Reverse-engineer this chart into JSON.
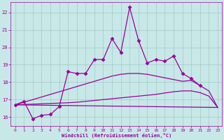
{
  "xlabel": "Windchill (Refroidissement éolien,°C)",
  "xlim": [
    -0.5,
    23.5
  ],
  "ylim": [
    15.5,
    22.6
  ],
  "xticks": [
    0,
    1,
    2,
    3,
    4,
    5,
    6,
    7,
    8,
    9,
    10,
    11,
    12,
    13,
    14,
    15,
    16,
    17,
    18,
    19,
    20,
    21,
    22,
    23
  ],
  "yticks": [
    16,
    17,
    18,
    19,
    20,
    21,
    22
  ],
  "bg_color": "#c8e8e8",
  "line_color": "#990099",
  "grid_color": "#a0c8c8",
  "series": [
    {
      "x": [
        0,
        1,
        2,
        3,
        4,
        5,
        6,
        7,
        8,
        9,
        10,
        11,
        12,
        13,
        14,
        15,
        16,
        17,
        18,
        19,
        20,
        21,
        22,
        23
      ],
      "y": [
        16.7,
        16.9,
        15.9,
        16.1,
        16.15,
        16.6,
        18.6,
        18.5,
        18.5,
        19.3,
        19.3,
        20.5,
        19.7,
        22.3,
        20.4,
        19.1,
        19.3,
        19.2,
        19.5,
        18.5,
        18.2,
        17.8,
        null,
        null
      ],
      "marker": "D",
      "marker_size": 2.5,
      "lw": 0.9
    },
    {
      "x": [
        0,
        23
      ],
      "y": [
        16.7,
        16.55
      ],
      "marker": null,
      "marker_size": 0,
      "lw": 0.9
    },
    {
      "x": [
        0,
        1,
        2,
        3,
        4,
        5,
        6,
        7,
        8,
        9,
        10,
        11,
        12,
        13,
        14,
        15,
        16,
        17,
        18,
        19,
        20,
        21,
        22,
        23
      ],
      "y": [
        16.7,
        16.85,
        17.0,
        17.15,
        17.3,
        17.45,
        17.6,
        17.75,
        17.9,
        18.05,
        18.2,
        18.35,
        18.45,
        18.5,
        18.5,
        18.45,
        18.35,
        18.25,
        18.15,
        18.05,
        18.1,
        17.8,
        17.5,
        16.55
      ],
      "marker": null,
      "marker_size": 0,
      "lw": 0.9
    },
    {
      "x": [
        0,
        1,
        2,
        3,
        4,
        5,
        6,
        7,
        8,
        9,
        10,
        11,
        12,
        13,
        14,
        15,
        16,
        17,
        18,
        19,
        20,
        21,
        22,
        23
      ],
      "y": [
        16.7,
        16.72,
        16.74,
        16.76,
        16.78,
        16.8,
        16.82,
        16.85,
        16.9,
        16.95,
        17.0,
        17.05,
        17.1,
        17.15,
        17.2,
        17.25,
        17.3,
        17.38,
        17.45,
        17.5,
        17.5,
        17.4,
        17.2,
        16.55
      ],
      "marker": null,
      "marker_size": 0,
      "lw": 0.9
    }
  ]
}
